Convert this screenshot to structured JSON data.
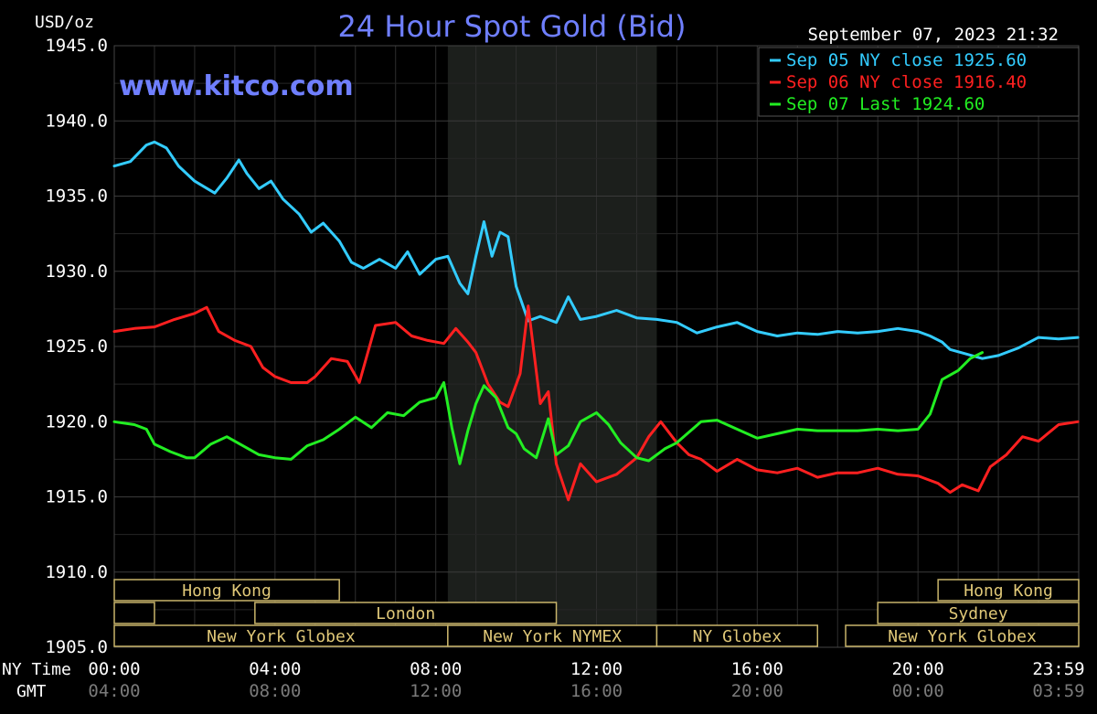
{
  "header": {
    "unit": "USD/oz",
    "title": "24 Hour Spot Gold (Bid)",
    "watermark": "www.kitco.com",
    "timestamp": "September 07, 2023 21:32",
    "title_color": "#6f7fff"
  },
  "legend": [
    {
      "label": "Sep 05 NY close 1925.60",
      "color": "#33ccff"
    },
    {
      "label": "Sep 06 NY close 1916.40",
      "color": "#ff2020"
    },
    {
      "label": "Sep 07 Last 1924.60",
      "color": "#22ee22"
    }
  ],
  "row_labels": {
    "ny_time": "NY Time",
    "gmt": "GMT"
  },
  "sessions": [
    {
      "label": "Hong Kong",
      "start": 0,
      "end": 5.6,
      "row": 0
    },
    {
      "label": "Hong Kong",
      "start": 20.5,
      "end": 24,
      "row": 0
    },
    {
      "label": "",
      "start": 0,
      "end": 1.0,
      "row": 1
    },
    {
      "label": "London",
      "start": 3.5,
      "end": 11.0,
      "row": 1
    },
    {
      "label": "Sydney",
      "start": 19.0,
      "end": 24,
      "row": 1
    },
    {
      "label": "New York Globex",
      "start": 0,
      "end": 8.3,
      "row": 2
    },
    {
      "label": "New York NYMEX",
      "start": 8.3,
      "end": 13.5,
      "row": 2
    },
    {
      "label": "NY Globex",
      "start": 13.5,
      "end": 17.5,
      "row": 2
    },
    {
      "label": "New York Globex",
      "start": 18.2,
      "end": 24,
      "row": 2
    }
  ],
  "chart_data": {
    "type": "line",
    "title": "24 Hour Spot Gold (Bid)",
    "ylabel": "USD/oz",
    "ylim": [
      1905,
      1945
    ],
    "xlim": [
      0,
      24
    ],
    "yticks": [
      "1945.0",
      "1940.0",
      "1935.0",
      "1930.0",
      "1925.0",
      "1920.0",
      "1915.0",
      "1910.0",
      "1905.0"
    ],
    "ytick_values": [
      1945,
      1940,
      1935,
      1930,
      1925,
      1920,
      1915,
      1910,
      1905
    ],
    "xticks_ny": [
      "00:00",
      "04:00",
      "08:00",
      "12:00",
      "16:00",
      "20:00",
      "23:59"
    ],
    "xticks_gmt": [
      "04:00",
      "08:00",
      "12:00",
      "16:00",
      "20:00",
      "00:00",
      "03:59"
    ],
    "xtick_values": [
      0,
      4,
      8,
      12,
      16,
      20,
      23.98
    ],
    "grid": true,
    "shaded_region": [
      8.3,
      13.5
    ],
    "legend_position": "top-right",
    "series": [
      {
        "name": "Sep 05 NY close 1925.60",
        "color": "#33ccff",
        "x": [
          0,
          0.4,
          0.8,
          1.0,
          1.3,
          1.6,
          2.0,
          2.5,
          2.8,
          3.1,
          3.3,
          3.6,
          3.9,
          4.2,
          4.6,
          4.9,
          5.2,
          5.6,
          5.9,
          6.2,
          6.6,
          7.0,
          7.3,
          7.6,
          8.0,
          8.3,
          8.6,
          8.8,
          9.0,
          9.2,
          9.4,
          9.6,
          9.8,
          10.0,
          10.3,
          10.6,
          11.0,
          11.3,
          11.6,
          12.0,
          12.5,
          13.0,
          13.5,
          14.0,
          14.5,
          15.0,
          15.5,
          16.0,
          16.5,
          17.0,
          17.5,
          18.0,
          18.5,
          19.0,
          19.5,
          20.0,
          20.3,
          20.6,
          20.8,
          21.2,
          21.6,
          22.0,
          22.5,
          23.0,
          23.5,
          23.98
        ],
        "y": [
          1937.0,
          1937.3,
          1938.4,
          1938.6,
          1938.2,
          1937.0,
          1936.0,
          1935.2,
          1936.2,
          1937.4,
          1936.5,
          1935.5,
          1936.0,
          1934.8,
          1933.8,
          1932.6,
          1933.2,
          1932.0,
          1930.6,
          1930.2,
          1930.8,
          1930.2,
          1931.3,
          1929.8,
          1930.8,
          1931.0,
          1929.2,
          1928.5,
          1931.0,
          1933.3,
          1931.0,
          1932.6,
          1932.3,
          1929.0,
          1926.7,
          1927.0,
          1926.6,
          1928.3,
          1926.8,
          1927.0,
          1927.4,
          1926.9,
          1926.8,
          1926.6,
          1925.9,
          1926.3,
          1926.6,
          1926.0,
          1925.7,
          1925.9,
          1925.8,
          1926.0,
          1925.9,
          1926.0,
          1926.2,
          1926.0,
          1925.7,
          1925.3,
          1924.8,
          1924.5,
          1924.2,
          1924.4,
          1924.9,
          1925.6,
          1925.5,
          1925.6
        ]
      },
      {
        "name": "Sep 06 NY close 1916.40",
        "color": "#ff2020",
        "x": [
          0,
          0.5,
          1.0,
          1.5,
          2.0,
          2.3,
          2.6,
          3.0,
          3.4,
          3.7,
          4.0,
          4.4,
          4.8,
          5.0,
          5.4,
          5.8,
          6.1,
          6.5,
          7.0,
          7.4,
          7.8,
          8.2,
          8.5,
          8.8,
          9.0,
          9.3,
          9.6,
          9.8,
          10.1,
          10.3,
          10.6,
          10.8,
          11.0,
          11.3,
          11.6,
          12.0,
          12.5,
          13.0,
          13.3,
          13.6,
          14.0,
          14.3,
          14.6,
          15.0,
          15.5,
          16.0,
          16.5,
          17.0,
          17.5,
          18.0,
          18.5,
          19.0,
          19.5,
          20.0,
          20.5,
          20.8,
          21.1,
          21.5,
          21.8,
          22.2,
          22.6,
          23.0,
          23.5,
          23.98
        ],
        "y": [
          1926.0,
          1926.2,
          1926.3,
          1926.8,
          1927.2,
          1927.6,
          1926.0,
          1925.4,
          1925.0,
          1923.6,
          1923.0,
          1922.6,
          1922.6,
          1923.0,
          1924.2,
          1924.0,
          1922.6,
          1926.4,
          1926.6,
          1925.7,
          1925.4,
          1925.2,
          1926.2,
          1925.3,
          1924.6,
          1922.5,
          1921.3,
          1921.0,
          1923.2,
          1927.7,
          1921.2,
          1922.0,
          1917.2,
          1914.8,
          1917.2,
          1916.0,
          1916.5,
          1917.6,
          1919.0,
          1920.0,
          1918.6,
          1917.8,
          1917.5,
          1916.7,
          1917.5,
          1916.8,
          1916.6,
          1916.9,
          1916.3,
          1916.6,
          1916.6,
          1916.9,
          1916.5,
          1916.4,
          1915.9,
          1915.3,
          1915.8,
          1915.4,
          1917.0,
          1917.8,
          1919.0,
          1918.7,
          1919.8,
          1920.0
        ]
      },
      {
        "name": "Sep 07 Last 1924.60",
        "color": "#22ee22",
        "x": [
          0,
          0.5,
          0.8,
          1.0,
          1.4,
          1.8,
          2.0,
          2.4,
          2.8,
          3.2,
          3.6,
          4.0,
          4.4,
          4.8,
          5.2,
          5.6,
          6.0,
          6.4,
          6.8,
          7.2,
          7.6,
          8.0,
          8.2,
          8.4,
          8.6,
          8.8,
          9.0,
          9.2,
          9.5,
          9.8,
          10.0,
          10.2,
          10.5,
          10.8,
          11.0,
          11.3,
          11.6,
          12.0,
          12.3,
          12.6,
          13.0,
          13.3,
          13.7,
          14.0,
          14.3,
          14.6,
          15.0,
          15.5,
          16.0,
          16.5,
          17.0,
          17.5,
          18.0,
          18.5,
          19.0,
          19.5,
          20.0,
          20.3,
          20.6,
          21.0,
          21.3,
          21.6
        ],
        "y": [
          1920.0,
          1919.8,
          1919.5,
          1918.5,
          1918.0,
          1917.6,
          1917.6,
          1918.5,
          1919.0,
          1918.4,
          1917.8,
          1917.6,
          1917.5,
          1918.4,
          1918.8,
          1919.5,
          1920.3,
          1919.6,
          1920.6,
          1920.4,
          1921.3,
          1921.6,
          1922.6,
          1919.6,
          1917.2,
          1919.4,
          1921.2,
          1922.4,
          1921.6,
          1919.6,
          1919.2,
          1918.2,
          1917.6,
          1920.2,
          1917.8,
          1918.4,
          1920.0,
          1920.6,
          1919.8,
          1918.6,
          1917.6,
          1917.4,
          1918.2,
          1918.6,
          1919.3,
          1920.0,
          1920.1,
          1919.5,
          1918.9,
          1919.2,
          1919.5,
          1919.4,
          1919.4,
          1919.4,
          1919.5,
          1919.4,
          1919.5,
          1920.5,
          1922.8,
          1923.4,
          1924.2,
          1924.6
        ]
      }
    ]
  }
}
